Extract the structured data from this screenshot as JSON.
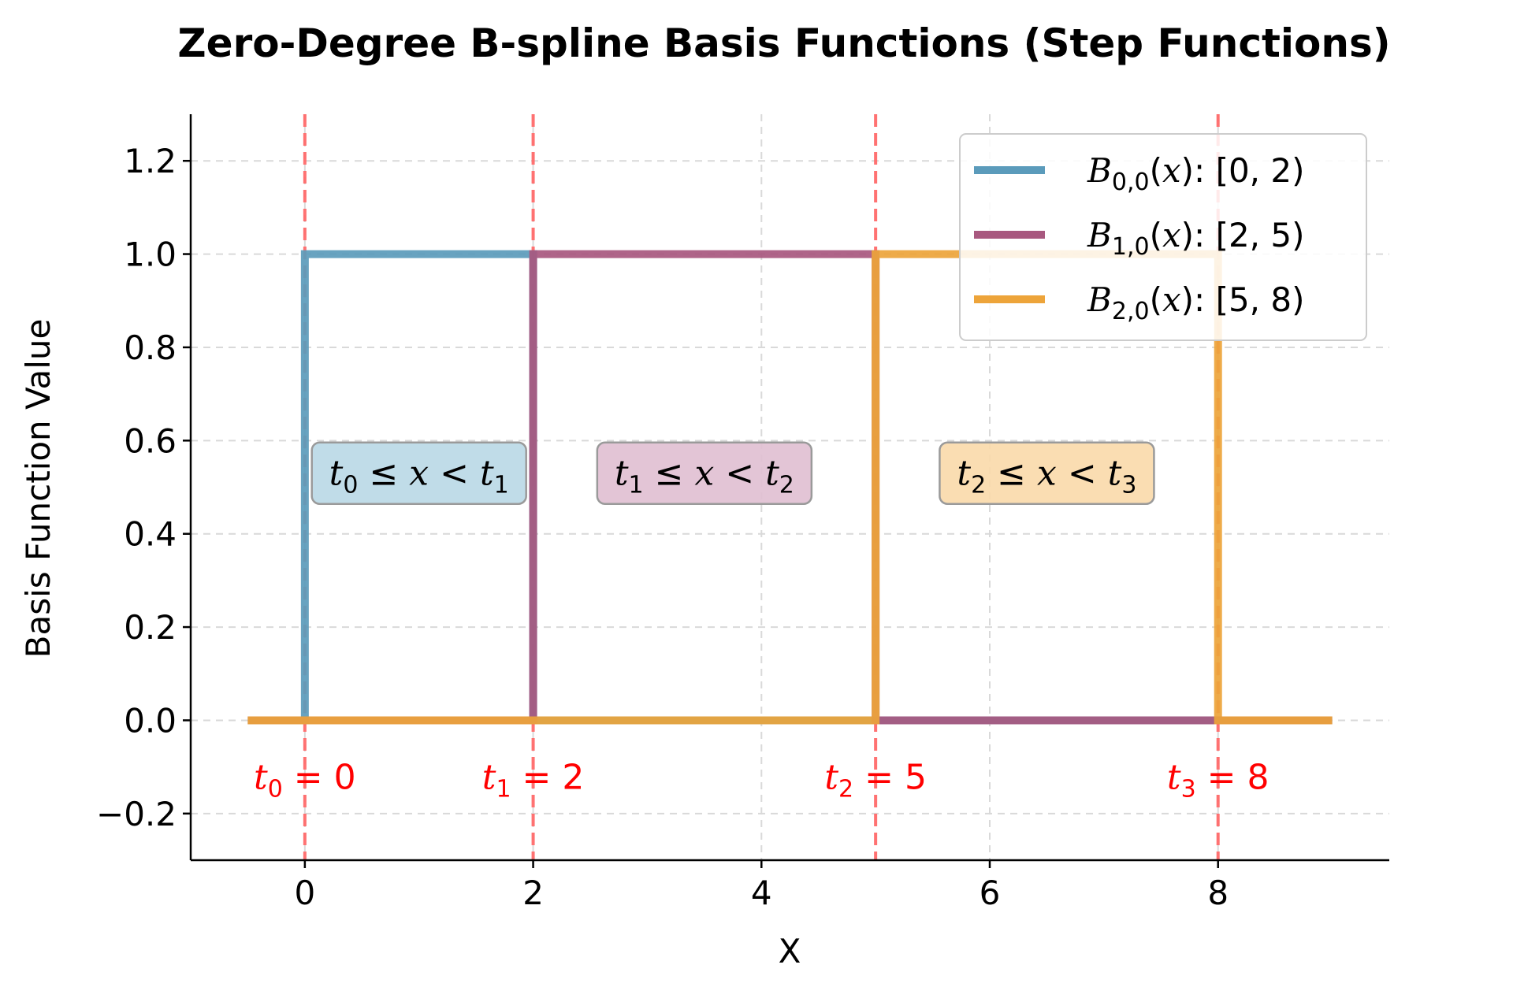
{
  "chart_data": {
    "type": "line",
    "title": "Zero-Degree B-spline Basis Functions (Step Functions)",
    "xlabel": "X",
    "ylabel": "Basis Function Value",
    "xlim": [
      -1,
      9.5
    ],
    "ylim": [
      -0.3,
      1.3
    ],
    "xticks": [
      0,
      2,
      4,
      6,
      8
    ],
    "xtick_labels": [
      "0",
      "2",
      "4",
      "6",
      "8"
    ],
    "yticks": [
      -0.2,
      0.0,
      0.2,
      0.4,
      0.6,
      0.8,
      1.0,
      1.2
    ],
    "ytick_labels": [
      "−0.2",
      "0.0",
      "0.2",
      "0.4",
      "0.6",
      "0.8",
      "1.0",
      "1.2"
    ],
    "grid": true,
    "legend_position": "top-right",
    "knots": [
      0,
      2,
      5,
      8
    ],
    "knot_color": "#ff6b6b",
    "series": [
      {
        "name": "B₀,₀(x): [0, 2)",
        "name_parts": {
          "sub": "0,0",
          "range": "[0, 2)"
        },
        "color": "#5b9bbb",
        "x": [
          -0.5,
          0,
          0,
          2,
          2,
          9
        ],
        "y": [
          0,
          0,
          1,
          1,
          0,
          0
        ]
      },
      {
        "name": "B₁,₀(x): [2, 5)",
        "name_parts": {
          "sub": "1,0",
          "range": "[2, 5)"
        },
        "color": "#a8587f",
        "x": [
          -0.5,
          2,
          2,
          5,
          5,
          9
        ],
        "y": [
          0,
          0,
          1,
          1,
          0,
          0
        ]
      },
      {
        "name": "B₂,₀(x): [5, 8)",
        "name_parts": {
          "sub": "2,0",
          "range": "[5, 8)"
        },
        "color": "#eda43a",
        "x": [
          -0.5,
          5,
          5,
          8,
          8,
          9
        ],
        "y": [
          0,
          0,
          1,
          1,
          0,
          0
        ]
      }
    ],
    "annotations": {
      "knot_labels": [
        {
          "x": 0,
          "y": -0.12,
          "sub": "0",
          "value": "0"
        },
        {
          "x": 2,
          "y": -0.12,
          "sub": "1",
          "value": "2"
        },
        {
          "x": 5,
          "y": -0.12,
          "sub": "2",
          "value": "5"
        },
        {
          "x": 8,
          "y": -0.12,
          "sub": "3",
          "value": "8"
        }
      ],
      "regions": [
        {
          "x": 1,
          "y": 0.53,
          "a": "0",
          "b": "1",
          "fill": "#b9d8e6"
        },
        {
          "x": 3.5,
          "y": 0.53,
          "a": "1",
          "b": "2",
          "fill": "#e0bfd1"
        },
        {
          "x": 6.5,
          "y": 0.53,
          "a": "2",
          "b": "3",
          "fill": "#f9d9aa"
        }
      ]
    }
  }
}
